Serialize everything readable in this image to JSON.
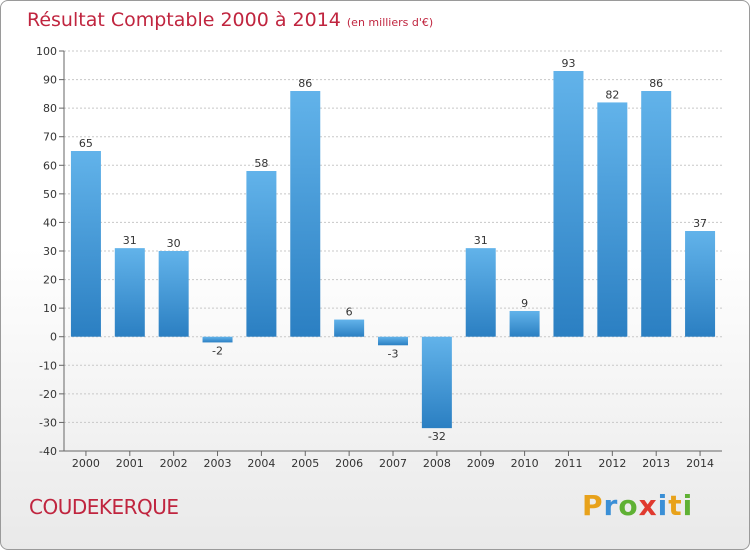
{
  "title": "Résultat Comptable 2000 à 2014",
  "subtitle": "(en milliers d'€)",
  "commune": "COUDEKERQUE",
  "brand": {
    "letters": [
      "P",
      "r",
      "o",
      "x",
      "i",
      "t",
      "i"
    ],
    "colors": [
      "#e8a21b",
      "#3a8fd6",
      "#5fb134",
      "#e03a2f",
      "#3a8fd6",
      "#e8a21b",
      "#5fb134"
    ]
  },
  "colors": {
    "bar_light": "#62b3ea",
    "bar_dark": "#2b7fc2",
    "title": "#c0253f",
    "axis": "#666666",
    "grid": "#c8c8c8"
  },
  "chart_data": {
    "type": "bar",
    "title": "Résultat Comptable 2000 à 2014",
    "subtitle": "(en milliers d'€)",
    "categories": [
      "2000",
      "2001",
      "2002",
      "2003",
      "2004",
      "2005",
      "2006",
      "2007",
      "2008",
      "2009",
      "2010",
      "2011",
      "2012",
      "2013",
      "2014"
    ],
    "values": [
      65,
      31,
      30,
      -2,
      58,
      86,
      6,
      -3,
      -32,
      31,
      9,
      93,
      82,
      86,
      37
    ],
    "ylim": [
      -40,
      100
    ],
    "yticks": [
      -40,
      -30,
      -20,
      -10,
      0,
      10,
      20,
      30,
      40,
      50,
      60,
      70,
      80,
      90,
      100
    ],
    "xlabel": "",
    "ylabel": "",
    "grid": true
  }
}
